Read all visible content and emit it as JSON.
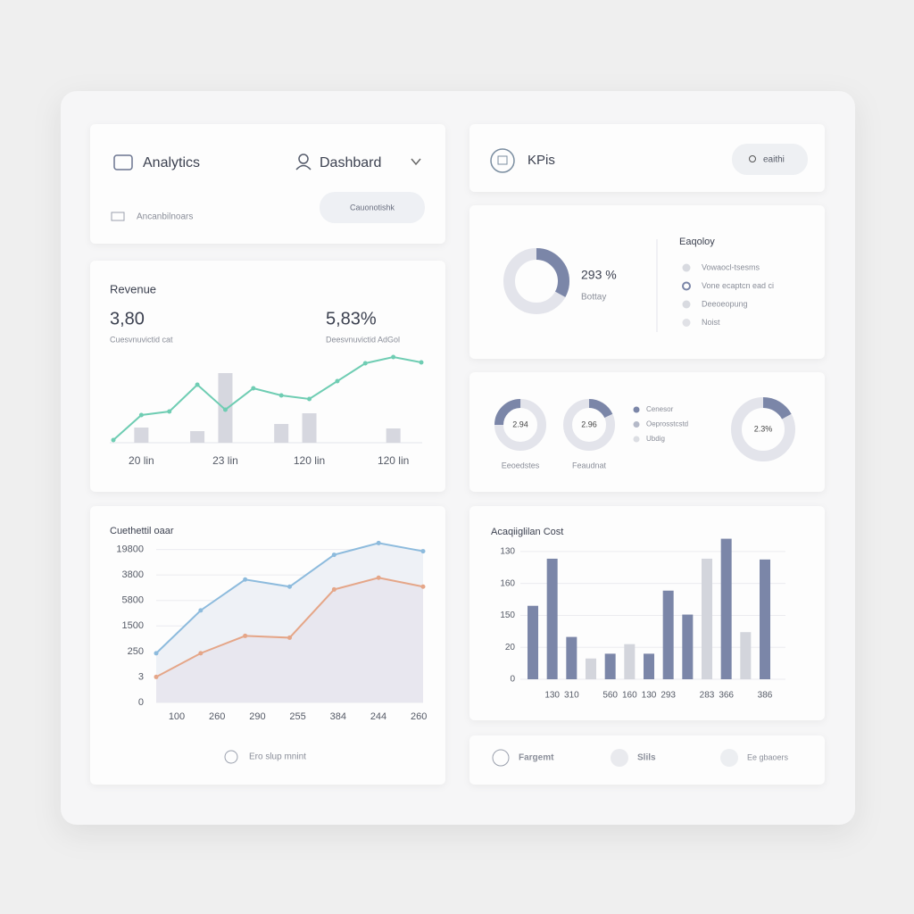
{
  "header": {
    "title": "Analytics",
    "menu": "Dashbard",
    "subtitle": "Ancanbilnoars",
    "button": "Cauonotishk"
  },
  "kpis": {
    "title": "KPis",
    "search": "eaithi"
  },
  "bottom_bar": {
    "items": [
      "Fargemt",
      "Slils",
      "Ee gbaoers"
    ]
  },
  "chart_data": [
    {
      "type": "line",
      "title": "Revenue",
      "stats": [
        {
          "value_text": "3,80",
          "caption": "Cuesvnuvictid cat"
        },
        {
          "value_text": "5,83%",
          "caption": "Deesvnuvictid AdGol"
        }
      ],
      "categories": [
        null,
        "20 lin",
        null,
        null,
        "23 lin",
        null,
        null,
        "120 lin",
        null,
        null,
        "120 lin",
        null
      ],
      "ylim": [
        0,
        100
      ],
      "series": [
        {
          "type": "bar",
          "color": "#d6d7df",
          "values": [
            null,
            17,
            null,
            13,
            78,
            null,
            21,
            33,
            null,
            null,
            16,
            null
          ]
        },
        {
          "type": "line",
          "color": "#6fcdb3",
          "values": [
            3,
            31,
            35,
            65,
            37,
            61,
            53,
            49,
            69,
            89,
            96,
            90
          ]
        }
      ]
    },
    {
      "type": "area",
      "title": "Cuethettil oaar",
      "note": "Ero slup mnint",
      "categories": [
        "100",
        "260",
        "290",
        "255",
        "384",
        "244",
        "260"
      ],
      "ylim": [
        0,
        6300
      ],
      "yticks": [
        0,
        {
          "value": 1000,
          "label": "3"
        },
        {
          "value": 2000,
          "label": "250"
        },
        {
          "value": 3000,
          "label": "1500"
        },
        {
          "value": 4000,
          "label": "5800"
        },
        {
          "value": 5000,
          "label": "3800"
        },
        {
          "value": 6000,
          "label": "19800"
        }
      ],
      "grid": true,
      "series": [
        {
          "color": "#8dbbdd",
          "fill": "#eef1f6",
          "values": [
            1930,
            3610,
            4820,
            4540,
            5790,
            6250,
            5930
          ]
        },
        {
          "color": "#e5a688",
          "fill": "#e8e7ef",
          "values": [
            1000,
            1930,
            2610,
            2540,
            4430,
            4890,
            4540
          ]
        }
      ]
    },
    {
      "type": "donut",
      "title": "Eaqoloy",
      "value": 33,
      "color": "#7b86a8",
      "center_label": "293 %",
      "center_caption": "Bottay",
      "legend": [
        "Vowaocl-tsesms",
        "Vone ecaptcn ead ci",
        "Deeoeopung",
        "Noist"
      ]
    },
    {
      "type": "donuts",
      "color": "#7b86a8",
      "items": [
        {
          "value": 25,
          "label": "2.94",
          "caption": "Eeoedstes"
        },
        {
          "value": 18,
          "label": "2.96",
          "caption": "Feaudnat"
        },
        {
          "value": 17,
          "label": "2.3%"
        }
      ],
      "legend": [
        "Cenesor",
        "Oeprosstcstd",
        "Ubdig"
      ]
    },
    {
      "type": "bar",
      "title": "Acaqiiglilan Cost",
      "categories": [
        null,
        "130",
        "310",
        null,
        "560",
        "160",
        "130",
        "293",
        null,
        "283",
        "366",
        null,
        "386"
      ],
      "values": [
        92,
        151,
        53,
        26,
        32,
        44,
        32,
        111,
        81,
        151,
        176,
        59,
        150
      ],
      "colors": [
        "#7b86a8",
        "#7b86a8",
        "#7b86a8",
        "#d3d5dc",
        "#7b86a8",
        "#d3d5dc",
        "#7b86a8",
        "#7b86a8",
        "#7b86a8",
        "#d3d5dc",
        "#7b86a8",
        "#d3d5dc",
        "#7b86a8"
      ],
      "ylim": [
        0,
        180
      ],
      "yticks": [
        0,
        {
          "value": 40,
          "label": "20"
        },
        {
          "value": 80,
          "label": "150"
        },
        {
          "value": 120,
          "label": "160"
        },
        {
          "value": 160,
          "label": "130"
        }
      ],
      "grid": true
    }
  ]
}
